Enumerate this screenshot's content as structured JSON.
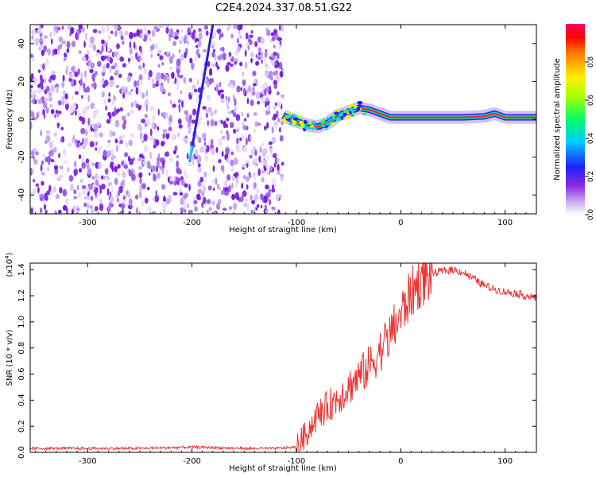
{
  "title": "C2E4.2024.337.08.51.G22",
  "chart_data": [
    {
      "type": "heatmap",
      "xlabel": "Height of straight line (km)",
      "ylabel": "Frequency (Hz)",
      "xlim": [
        -355,
        130
      ],
      "ylim": [
        -50,
        50
      ],
      "x_ticks": [
        -300,
        -200,
        -100,
        0,
        100
      ],
      "y_ticks": [
        -40,
        -20,
        0,
        20,
        40
      ],
      "colorbar": {
        "label": "Normalized spectral amplitude",
        "range": [
          0,
          1
        ],
        "ticks": [
          "0.0",
          "0.2",
          "0.4",
          "0.6",
          "0.8"
        ]
      },
      "features": {
        "noise_region_km": [
          -355,
          -113
        ],
        "tilted_streak": {
          "from_km": -202,
          "to_km": -180,
          "freq_from": -22,
          "freq_to": 50
        },
        "ridge_x_km": [
          -113,
          -100,
          -90,
          -80,
          -70,
          -60,
          -50,
          -40,
          -30,
          -20,
          -10,
          0,
          20,
          40,
          60,
          80,
          90,
          100,
          130
        ],
        "ridge_freq_hz": [
          2,
          -1,
          -3,
          -4,
          -2,
          2,
          4,
          6,
          5,
          3,
          1,
          1,
          1,
          1,
          1,
          1.5,
          3,
          1,
          1
        ]
      }
    },
    {
      "type": "line",
      "xlabel": "Height of straight line (km)",
      "ylabel": "SNR (10 * v/v)",
      "y_multiplier": "(x10",
      "y_multiplier_exp": "4",
      "xlim": [
        -355,
        130
      ],
      "ylim": [
        0,
        1.45
      ],
      "x_ticks": [
        -300,
        -200,
        -100,
        0,
        100
      ],
      "y_ticks": [
        "0.0",
        "0.2",
        "0.4",
        "0.6",
        "0.8",
        "1.0",
        "1.2",
        "1.4"
      ],
      "series": [
        {
          "color": "#ee3333",
          "x": [
            -355,
            -300,
            -250,
            -200,
            -150,
            -120,
            -100,
            -90,
            -80,
            -70,
            -60,
            -50,
            -40,
            -30,
            -20,
            -10,
            0,
            10,
            20,
            30,
            40,
            50,
            60,
            70,
            80,
            90,
            100,
            110,
            120,
            130
          ],
          "y": [
            0.03,
            0.03,
            0.03,
            0.04,
            0.03,
            0.03,
            0.04,
            0.15,
            0.28,
            0.35,
            0.42,
            0.5,
            0.58,
            0.66,
            0.78,
            0.9,
            1.05,
            1.22,
            1.32,
            1.37,
            1.39,
            1.4,
            1.38,
            1.33,
            1.28,
            1.25,
            1.23,
            1.22,
            1.2,
            1.18
          ]
        }
      ]
    }
  ]
}
